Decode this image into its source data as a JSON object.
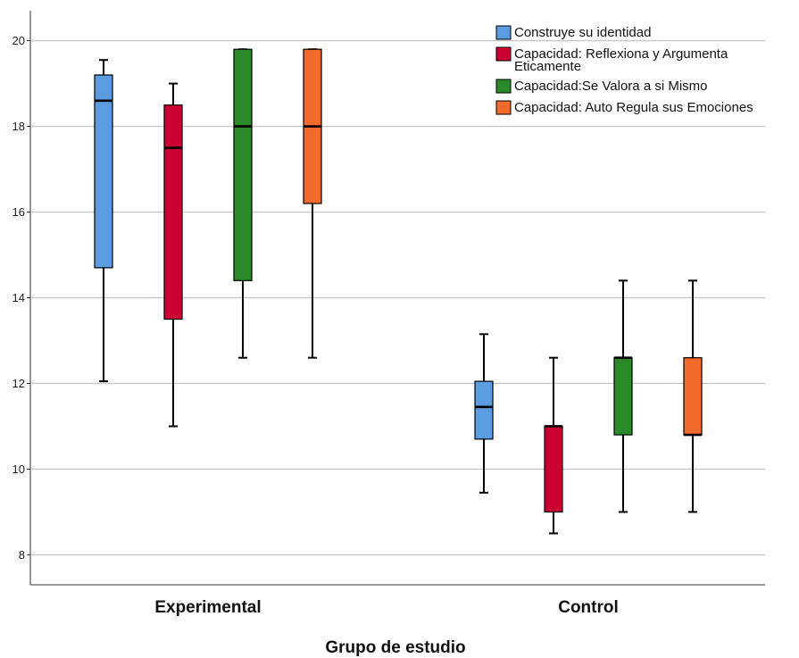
{
  "chart_data": {
    "type": "boxplot",
    "xlabel": "Grupo de estudio",
    "ylabel": "",
    "ylim": [
      7.3,
      20.7
    ],
    "yticks": [
      8,
      10,
      12,
      14,
      16,
      18,
      20
    ],
    "grid": true,
    "legend_position": "top-right",
    "categories": [
      "Experimental",
      "Control"
    ],
    "series": [
      {
        "name": "Construye su identidad",
        "color": "#5B9BE0",
        "legend_lines": [
          "Construye su identidad"
        ],
        "boxes": [
          {
            "min": 12.05,
            "q1": 14.7,
            "median": 18.6,
            "q3": 19.2,
            "max": 19.55
          },
          {
            "min": 9.45,
            "q1": 10.7,
            "median": 11.45,
            "q3": 12.05,
            "max": 13.15
          }
        ]
      },
      {
        "name": "Capacidad: Reflexiona y Argumenta Eticamente",
        "color": "#CC0033",
        "legend_lines": [
          "Capacidad: Reflexiona y Argumenta",
          "Eticamente"
        ],
        "boxes": [
          {
            "min": 11.0,
            "q1": 13.5,
            "median": 17.5,
            "q3": 18.5,
            "max": 19.0
          },
          {
            "min": 8.5,
            "q1": 9.0,
            "median": 11.0,
            "q3": 11.0,
            "max": 12.6
          }
        ]
      },
      {
        "name": "Capacidad:Se Valora a si Mismo",
        "color": "#2A8A2A",
        "legend_lines": [
          "Capacidad:Se Valora a si Mismo"
        ],
        "boxes": [
          {
            "min": 12.6,
            "q1": 14.4,
            "median": 18.0,
            "q3": 19.8,
            "max": 19.8
          },
          {
            "min": 9.0,
            "q1": 10.8,
            "median": 12.6,
            "q3": 12.6,
            "max": 14.4
          }
        ]
      },
      {
        "name": "Capacidad: Auto Regula sus Emociones",
        "color": "#F26B2C",
        "legend_lines": [
          "Capacidad: Auto Regula sus Emociones"
        ],
        "boxes": [
          {
            "min": 12.6,
            "q1": 16.2,
            "median": 18.0,
            "q3": 19.8,
            "max": 19.8
          },
          {
            "min": 9.0,
            "q1": 10.8,
            "median": 10.8,
            "q3": 12.6,
            "max": 14.4
          }
        ]
      }
    ]
  }
}
